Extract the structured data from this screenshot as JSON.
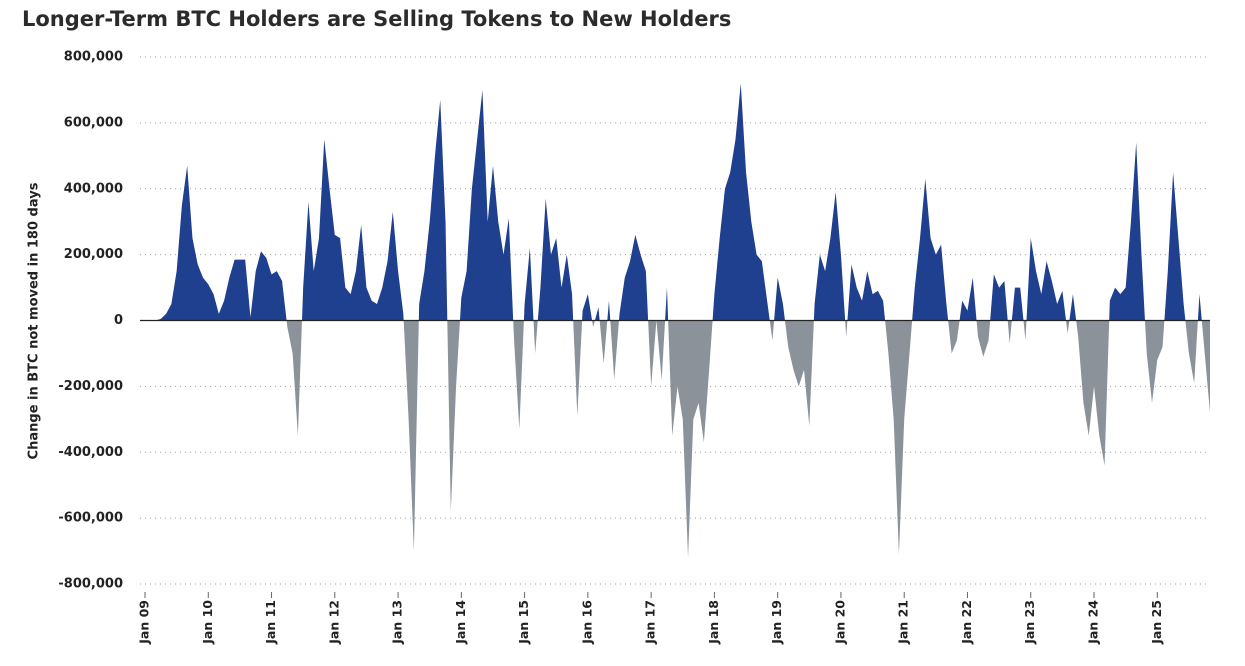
{
  "chart_data": {
    "type": "area",
    "title": "Longer-Term BTC Holders are Selling Tokens to New Holders",
    "y_label": "Change in BTC not moved in 180 days",
    "color": "#1f3f8f",
    "negative_color": "#8b9299",
    "grid": true,
    "ylim": [
      -800000,
      800000
    ],
    "yticks": [
      {
        "value": -800000,
        "label": "-800,000"
      },
      {
        "value": -600000,
        "label": "-600,000"
      },
      {
        "value": -400000,
        "label": "-400,000"
      },
      {
        "value": -200000,
        "label": "-200,000"
      },
      0,
      {
        "value": 200000,
        "label": "200,000"
      },
      {
        "value": 400000,
        "label": "400,000"
      },
      {
        "value": 600000,
        "label": "600,000"
      },
      {
        "value": 800000,
        "label": "800,000"
      }
    ],
    "xlim": [
      "2009-01",
      "2025-11"
    ],
    "xticks": [
      {
        "value": "2009-01",
        "label": "Jan 09"
      },
      {
        "value": "2010-01",
        "label": "Jan 10"
      },
      {
        "value": "2011-01",
        "label": "Jan 11"
      },
      {
        "value": "2012-01",
        "label": "Jan 12"
      },
      {
        "value": "2013-01",
        "label": "Jan 13"
      },
      {
        "value": "2014-01",
        "label": "Jan 14"
      },
      {
        "value": "2015-01",
        "label": "Jan 15"
      },
      {
        "value": "2016-01",
        "label": "Jan 16"
      },
      {
        "value": "2017-01",
        "label": "Jan 17"
      },
      {
        "value": "2018-01",
        "label": "Jan 18"
      },
      {
        "value": "2019-01",
        "label": "Jan 19"
      },
      {
        "value": "2020-01",
        "label": "Jan 20"
      },
      {
        "value": "2021-01",
        "label": "Jan 21"
      },
      {
        "value": "2022-01",
        "label": "Jan 22"
      },
      {
        "value": "2023-01",
        "label": "Jan 23"
      },
      {
        "value": "2024-01",
        "label": "Jan 24"
      },
      {
        "value": "2025-01",
        "label": "Jan 25"
      }
    ],
    "x": [
      "2009-01",
      "2009-02",
      "2009-03",
      "2009-04",
      "2009-05",
      "2009-06",
      "2009-07",
      "2009-08",
      "2009-09",
      "2009-10",
      "2009-11",
      "2009-12",
      "2010-01",
      "2010-02",
      "2010-03",
      "2010-04",
      "2010-05",
      "2010-06",
      "2010-07",
      "2010-08",
      "2010-09",
      "2010-10",
      "2010-11",
      "2010-12",
      "2011-01",
      "2011-02",
      "2011-03",
      "2011-04",
      "2011-05",
      "2011-06",
      "2011-07",
      "2011-08",
      "2011-09",
      "2011-10",
      "2011-11",
      "2011-12",
      "2012-01",
      "2012-02",
      "2012-03",
      "2012-04",
      "2012-05",
      "2012-06",
      "2012-07",
      "2012-08",
      "2012-09",
      "2012-10",
      "2012-11",
      "2012-12",
      "2013-01",
      "2013-02",
      "2013-03",
      "2013-04",
      "2013-05",
      "2013-06",
      "2013-07",
      "2013-08",
      "2013-09",
      "2013-10",
      "2013-11",
      "2013-12",
      "2014-01",
      "2014-02",
      "2014-03",
      "2014-04",
      "2014-05",
      "2014-06",
      "2014-07",
      "2014-08",
      "2014-09",
      "2014-10",
      "2014-11",
      "2014-12",
      "2015-01",
      "2015-02",
      "2015-03",
      "2015-04",
      "2015-05",
      "2015-06",
      "2015-07",
      "2015-08",
      "2015-09",
      "2015-10",
      "2015-11",
      "2015-12",
      "2016-01",
      "2016-02",
      "2016-03",
      "2016-04",
      "2016-05",
      "2016-06",
      "2016-07",
      "2016-08",
      "2016-09",
      "2016-10",
      "2016-11",
      "2016-12",
      "2017-01",
      "2017-02",
      "2017-03",
      "2017-04",
      "2017-05",
      "2017-06",
      "2017-07",
      "2017-08",
      "2017-09",
      "2017-10",
      "2017-11",
      "2017-12",
      "2018-01",
      "2018-02",
      "2018-03",
      "2018-04",
      "2018-05",
      "2018-06",
      "2018-07",
      "2018-08",
      "2018-09",
      "2018-10",
      "2018-11",
      "2018-12",
      "2019-01",
      "2019-02",
      "2019-03",
      "2019-04",
      "2019-05",
      "2019-06",
      "2019-07",
      "2019-08",
      "2019-09",
      "2019-10",
      "2019-11",
      "2019-12",
      "2020-01",
      "2020-02",
      "2020-03",
      "2020-04",
      "2020-05",
      "2020-06",
      "2020-07",
      "2020-08",
      "2020-09",
      "2020-10",
      "2020-11",
      "2020-12",
      "2021-01",
      "2021-02",
      "2021-03",
      "2021-04",
      "2021-05",
      "2021-06",
      "2021-07",
      "2021-08",
      "2021-09",
      "2021-10",
      "2021-11",
      "2021-12",
      "2022-01",
      "2022-02",
      "2022-03",
      "2022-04",
      "2022-05",
      "2022-06",
      "2022-07",
      "2022-08",
      "2022-09",
      "2022-10",
      "2022-11",
      "2022-12",
      "2023-01",
      "2023-02",
      "2023-03",
      "2023-04",
      "2023-05",
      "2023-06",
      "2023-07",
      "2023-08",
      "2023-09",
      "2023-10",
      "2023-11",
      "2023-12",
      "2024-01",
      "2024-02",
      "2024-03",
      "2024-04",
      "2024-05",
      "2024-06",
      "2024-07",
      "2024-08",
      "2024-09",
      "2024-10",
      "2024-11",
      "2024-12",
      "2025-01",
      "2025-02",
      "2025-03",
      "2025-04",
      "2025-05",
      "2025-06",
      "2025-07",
      "2025-08",
      "2025-09",
      "2025-10",
      "2025-11"
    ],
    "values": [
      0,
      0,
      0,
      5000,
      20000,
      50000,
      150000,
      350000,
      470000,
      250000,
      170000,
      130000,
      110000,
      80000,
      20000,
      60000,
      130000,
      185000,
      185000,
      185000,
      10000,
      150000,
      210000,
      190000,
      140000,
      150000,
      120000,
      -20000,
      -100000,
      -350000,
      100000,
      360000,
      150000,
      250000,
      550000,
      400000,
      260000,
      250000,
      100000,
      80000,
      150000,
      290000,
      100000,
      60000,
      50000,
      100000,
      180000,
      330000,
      150000,
      20000,
      -300000,
      -700000,
      50000,
      150000,
      300000,
      500000,
      670000,
      300000,
      -580000,
      -200000,
      70000,
      150000,
      400000,
      550000,
      700000,
      300000,
      470000,
      300000,
      200000,
      310000,
      -60000,
      -330000,
      50000,
      220000,
      -100000,
      100000,
      370000,
      200000,
      250000,
      100000,
      200000,
      80000,
      -290000,
      30000,
      80000,
      -20000,
      40000,
      -130000,
      60000,
      -180000,
      20000,
      130000,
      180000,
      260000,
      200000,
      150000,
      -200000,
      0,
      -180000,
      100000,
      -350000,
      -200000,
      -300000,
      -720000,
      -300000,
      -250000,
      -370000,
      -150000,
      80000,
      250000,
      400000,
      450000,
      550000,
      720000,
      450000,
      300000,
      200000,
      180000,
      60000,
      -60000,
      130000,
      50000,
      -80000,
      -150000,
      -200000,
      -150000,
      -320000,
      50000,
      200000,
      150000,
      250000,
      390000,
      200000,
      -50000,
      170000,
      100000,
      60000,
      150000,
      80000,
      90000,
      60000,
      -100000,
      -300000,
      -710000,
      -300000,
      -100000,
      100000,
      250000,
      430000,
      250000,
      200000,
      230000,
      50000,
      -100000,
      -60000,
      60000,
      30000,
      130000,
      -50000,
      -110000,
      -60000,
      140000,
      100000,
      120000,
      -70000,
      100000,
      100000,
      -60000,
      250000,
      150000,
      80000,
      180000,
      120000,
      50000,
      90000,
      -40000,
      80000,
      -50000,
      -250000,
      -350000,
      -200000,
      -350000,
      -440000,
      60000,
      100000,
      80000,
      100000,
      300000,
      540000,
      200000,
      -100000,
      -250000,
      -120000,
      -80000,
      150000,
      450000,
      250000,
      50000,
      -100000,
      -190000,
      80000,
      -100000,
      -280000
    ]
  }
}
